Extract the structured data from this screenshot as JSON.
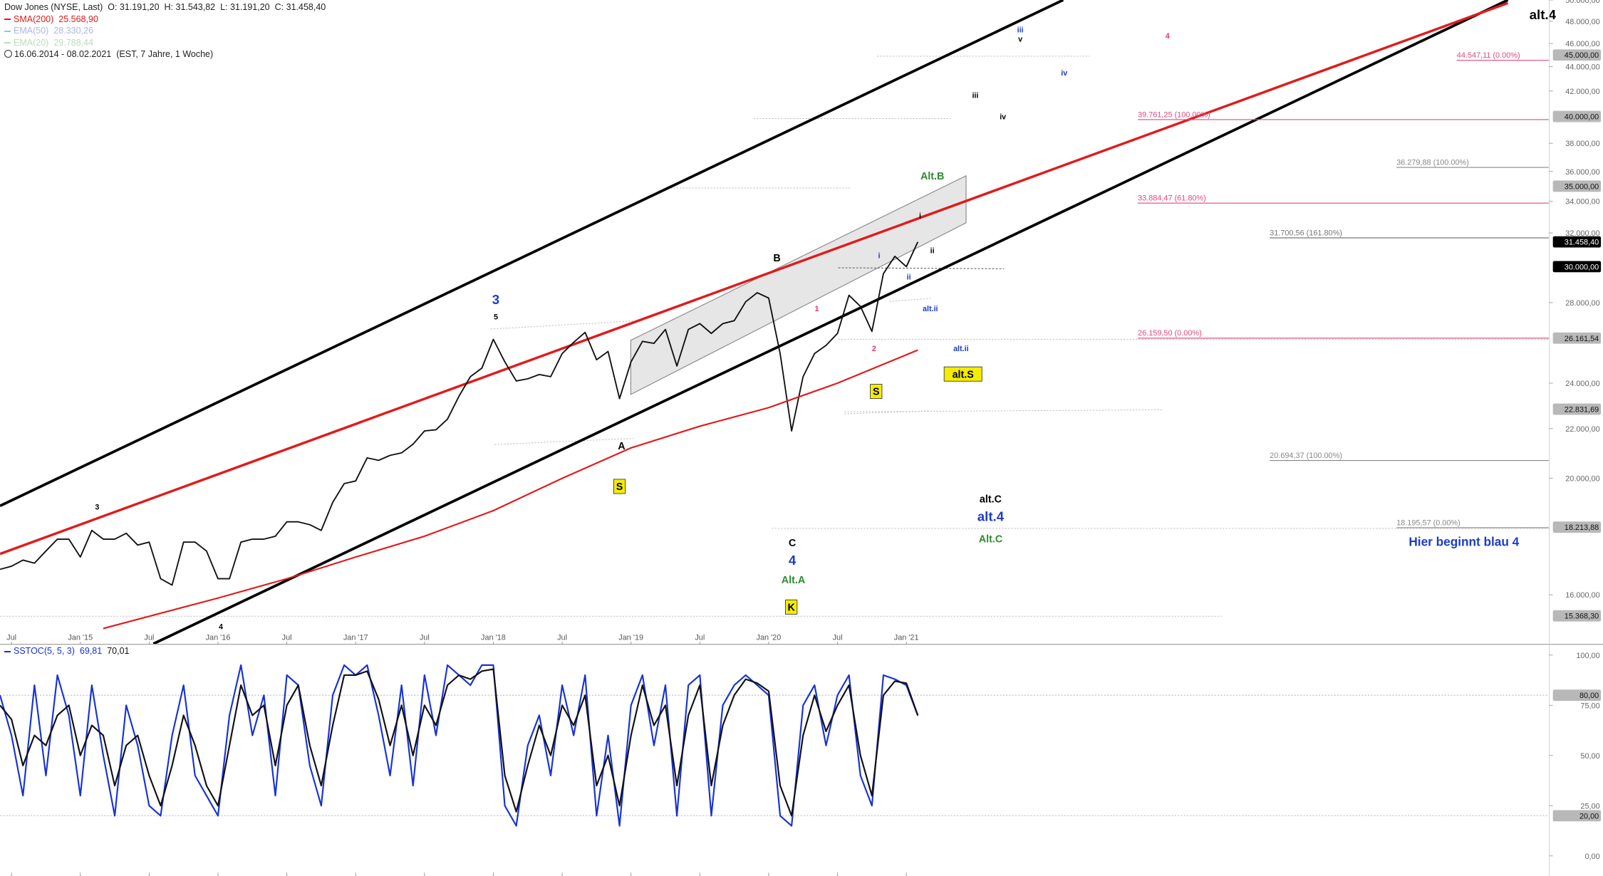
{
  "chart_data": [
    {
      "type": "line",
      "title": "Dow Jones (NYSE, Last)",
      "quote": [
        "O: 31.191,20",
        "H: 31.543,82",
        "L: 31.191,20",
        "C: 31.458,40"
      ],
      "period": "16.06.2014 - 08.02.2021",
      "period_note": "(EST, 7 Jahre, 1 Woche)",
      "log": true,
      "xlim": [
        "2014-06",
        "2025-09"
      ],
      "ylim": [
        14566,
        50000
      ],
      "xticks": [
        {
          "value": "2014-07",
          "label": "Jul"
        },
        {
          "value": "2015-01",
          "label": "Jan '15"
        },
        {
          "value": "2015-07",
          "label": "Jul"
        },
        {
          "value": "2016-01",
          "label": "Jan '16"
        },
        {
          "value": "2016-07",
          "label": "Jul"
        },
        {
          "value": "2017-01",
          "label": "Jan '17"
        },
        {
          "value": "2017-07",
          "label": "Jul"
        },
        {
          "value": "2018-01",
          "label": "Jan '18"
        },
        {
          "value": "2018-07",
          "label": "Jul"
        },
        {
          "value": "2019-01",
          "label": "Jan '19"
        },
        {
          "value": "2019-07",
          "label": "Jul"
        },
        {
          "value": "2020-01",
          "label": "Jan '20"
        },
        {
          "value": "2020-07",
          "label": "Jul"
        },
        {
          "value": "2021-01",
          "label": "Jan '21"
        }
      ],
      "yticks": [
        {
          "value": 16000,
          "label": "16.000,00"
        },
        {
          "value": 20000,
          "label": "20.000,00"
        },
        {
          "value": 22000,
          "label": "22.000,00"
        },
        {
          "value": 24000,
          "label": "24.000,00"
        },
        {
          "value": 28000,
          "label": "28.000,00"
        },
        {
          "value": 32000,
          "label": "32.000,00"
        },
        {
          "value": 34000,
          "label": "34.000,00"
        },
        {
          "value": 36000,
          "label": "36.000,00"
        },
        {
          "value": 38000,
          "label": "38.000,00"
        },
        {
          "value": 42000,
          "label": "42.000,00"
        },
        {
          "value": 44000,
          "label": "44.000,00"
        },
        {
          "value": 46000,
          "label": "46.000,00"
        },
        {
          "value": 48000,
          "label": "48.000,00"
        },
        {
          "value": 50000,
          "label": "50.000,00"
        }
      ],
      "x": [
        "2014-06",
        "2014-07",
        "2014-08",
        "2014-09",
        "2014-10",
        "2014-11",
        "2014-12",
        "2015-01",
        "2015-02",
        "2015-03",
        "2015-04",
        "2015-05",
        "2015-06",
        "2015-07",
        "2015-08",
        "2015-09",
        "2015-10",
        "2015-11",
        "2015-12",
        "2016-01",
        "2016-02",
        "2016-03",
        "2016-04",
        "2016-05",
        "2016-06",
        "2016-07",
        "2016-08",
        "2016-09",
        "2016-10",
        "2016-11",
        "2016-12",
        "2017-01",
        "2017-02",
        "2017-03",
        "2017-04",
        "2017-05",
        "2017-06",
        "2017-07",
        "2017-08",
        "2017-09",
        "2017-10",
        "2017-11",
        "2017-12",
        "2018-01",
        "2018-02",
        "2018-03",
        "2018-04",
        "2018-05",
        "2018-06",
        "2018-07",
        "2018-08",
        "2018-09",
        "2018-10",
        "2018-11",
        "2018-12",
        "2019-01",
        "2019-02",
        "2019-03",
        "2019-04",
        "2019-05",
        "2019-06",
        "2019-07",
        "2019-08",
        "2019-09",
        "2019-10",
        "2019-11",
        "2019-12",
        "2020-01",
        "2020-02",
        "2020-03",
        "2020-04",
        "2020-05",
        "2020-06",
        "2020-07",
        "2020-08",
        "2020-09",
        "2020-10",
        "2020-11",
        "2020-12",
        "2021-01",
        "2021-02"
      ],
      "series": [
        {
          "color": "#111111",
          "values": [
            16800,
            16900,
            17100,
            17000,
            17400,
            17800,
            17800,
            17200,
            18100,
            17800,
            17800,
            18000,
            17600,
            17700,
            16500,
            16300,
            17700,
            17700,
            17400,
            16500,
            16500,
            17700,
            17800,
            17800,
            17900,
            18400,
            18400,
            18300,
            18100,
            19100,
            19800,
            19900,
            20800,
            20700,
            20900,
            21000,
            21350,
            21900,
            21950,
            22400,
            23400,
            24300,
            24700,
            26100,
            25000,
            24100,
            24200,
            24400,
            24300,
            25400,
            25950,
            26450,
            25100,
            25500,
            23300,
            25000,
            26000,
            25900,
            26600,
            24800,
            26600,
            26900,
            26400,
            26900,
            27050,
            28050,
            28540,
            28250,
            25400,
            21900,
            24300,
            25400,
            25800,
            26400,
            28400,
            27800,
            26500,
            29600,
            30600,
            30000,
            31458.4
          ]
        },
        {
          "name": "SMA(200)",
          "last_label": "25.568,90",
          "color": "#e01b1b",
          "x": [
            "2015-03",
            "2016-01",
            "2016-07",
            "2017-01",
            "2017-07",
            "2018-01",
            "2018-07",
            "2019-01",
            "2019-07",
            "2020-01",
            "2020-07",
            "2021-02"
          ],
          "values": [
            15000,
            15900,
            16500,
            17200,
            17900,
            18800,
            20000,
            21200,
            22100,
            22900,
            24000,
            25568.9
          ]
        }
      ],
      "indicators_off": [
        {
          "name": "EMA(50)",
          "last_label": "28.330,26",
          "color": "#a9b6e6"
        },
        {
          "name": "EMA(20)",
          "last_label": "29.788,44",
          "color": "#b9dcb9"
        }
      ],
      "levels": [
        {
          "value": 45000,
          "label": "45.000,00",
          "color": "#b8b8b8"
        },
        {
          "value": 40000,
          "label": "40.000,00",
          "color": "#b8b8b8"
        },
        {
          "value": 35000,
          "label": "35.000,00",
          "color": "#b8b8b8"
        },
        {
          "value": 31458.4,
          "label": "31.458,40",
          "color": "#000000"
        },
        {
          "value": 30000,
          "label": "30.000,00",
          "color": "#000000"
        },
        {
          "value": 26161.54,
          "label": "26.161,54",
          "color": "#b8b8b8"
        },
        {
          "value": 22831.69,
          "label": "22.831,69",
          "color": "#b8b8b8"
        },
        {
          "value": 18213.88,
          "label": "18.213,88",
          "color": "#b8b8b8"
        },
        {
          "value": 15368.3,
          "label": "15.368,30",
          "color": "#b8b8b8"
        }
      ],
      "fib_levels": [
        {
          "value": 44547.11,
          "label": "44.547,11 (0.00%)",
          "color": "#e0497e"
        },
        {
          "value": 39761.25,
          "label": "39.761,25 (100.00%)",
          "color": "#e0497e"
        },
        {
          "value": 36279.88,
          "label": "36.279,88 (100.00%)",
          "color": "#888888"
        },
        {
          "value": 33884.47,
          "label": "33.884,47 (61.80%)",
          "color": "#e0497e"
        },
        {
          "value": 31700.56,
          "label": "31.700,56 (161.80%)",
          "color": "#777777"
        },
        {
          "value": 26159.5,
          "label": "26.159,50 (0.00%)",
          "color": "#e0497e"
        },
        {
          "value": 20694.37,
          "label": "20.694,37 (100.00%)",
          "color": "#888888"
        },
        {
          "value": 18195.57,
          "label": "18.195,57 (0.00%)",
          "color": "#888888"
        }
      ],
      "annotations": [
        {
          "text": "3",
          "color": "#1a3cc8",
          "style": "big"
        },
        {
          "text": "5",
          "color": "#000000",
          "style": "small"
        },
        {
          "text": "3",
          "color": "#000000",
          "style": "small"
        },
        {
          "text": "4",
          "color": "#000000",
          "style": "small"
        },
        {
          "text": "A",
          "color": "#000000",
          "style": "bold"
        },
        {
          "text": "S",
          "color": "#000000",
          "style": "box"
        },
        {
          "text": "B",
          "color": "#000000",
          "style": "bold"
        },
        {
          "text": "C",
          "color": "#000000",
          "style": "bold"
        },
        {
          "text": "4",
          "color": "#1a3cc8",
          "style": "big"
        },
        {
          "text": "Alt.A",
          "color": "#2e8b2e",
          "style": "bold"
        },
        {
          "text": "K",
          "color": "#000000",
          "style": "box"
        },
        {
          "text": "Alt.B",
          "color": "#2e8b2e",
          "style": "bold"
        },
        {
          "text": "alt.C",
          "color": "#000000",
          "style": "bold"
        },
        {
          "text": "alt.4",
          "color": "#1a3cc8",
          "style": "big"
        },
        {
          "text": "Alt.C",
          "color": "#2e8b2e",
          "style": "bold"
        },
        {
          "text": "alt.S",
          "color": "#000000",
          "style": "box"
        },
        {
          "text": "S",
          "color": "#000000",
          "style": "box"
        },
        {
          "text": "1",
          "color": "#e0356e",
          "style": "small"
        },
        {
          "text": "2",
          "color": "#e0356e",
          "style": "small"
        },
        {
          "text": "i",
          "color": "#1a3cc8",
          "style": "small"
        },
        {
          "text": "ii",
          "color": "#1a3cc8",
          "style": "small"
        },
        {
          "text": "i",
          "color": "#000000",
          "style": "small"
        },
        {
          "text": "ii",
          "color": "#000000",
          "style": "small"
        },
        {
          "text": "alt.ii",
          "color": "#1a3cc8",
          "style": "small"
        },
        {
          "text": "alt.ii",
          "color": "#1a3cc8",
          "style": "small"
        },
        {
          "text": "iii",
          "color": "#000000",
          "style": "small"
        },
        {
          "text": "iv",
          "color": "#000000",
          "style": "small"
        },
        {
          "text": "iii",
          "color": "#1a3cc8",
          "style": "small"
        },
        {
          "text": "v",
          "color": "#000000",
          "style": "small"
        },
        {
          "text": "iv",
          "color": "#1a3cc8",
          "style": "small"
        },
        {
          "text": "4",
          "color": "#e0356e",
          "style": "small"
        },
        {
          "text": "alt.4",
          "color": "#000000",
          "style": "big"
        },
        {
          "text": "Hier beginnt blau 4",
          "color": "#1a3cc8",
          "style": "bold"
        }
      ]
    },
    {
      "type": "line",
      "title": "SSTOC(5, 5, 3)",
      "xlim": [
        "2014-06",
        "2025-09"
      ],
      "ylim": [
        -10,
        105.6
      ],
      "yticks": [
        {
          "value": 0,
          "label": "0,00"
        },
        {
          "value": 25,
          "label": "25,00"
        },
        {
          "value": 50,
          "label": "50,00"
        },
        {
          "value": 75,
          "label": "75,00"
        },
        {
          "value": 100,
          "label": "100,00"
        }
      ],
      "levels": [
        {
          "value": 80,
          "label": "80,00",
          "color": "#b8b8b8"
        },
        {
          "value": 20,
          "label": "20,00",
          "color": "#b8b8b8"
        }
      ],
      "series": [
        {
          "last_label": "69,81",
          "color": "#1632d6",
          "values": [
            80,
            60,
            30,
            85,
            40,
            90,
            70,
            30,
            85,
            50,
            20,
            75,
            55,
            25,
            20,
            60,
            85,
            40,
            30,
            20,
            70,
            95,
            60,
            80,
            30,
            90,
            85,
            45,
            25,
            80,
            95,
            90,
            95,
            70,
            40,
            85,
            35,
            90,
            60,
            95,
            90,
            85,
            95,
            95,
            25,
            15,
            55,
            70,
            40,
            85,
            60,
            90,
            20,
            60,
            15,
            75,
            90,
            55,
            85,
            20,
            85,
            90,
            20,
            75,
            85,
            90,
            85,
            80,
            20,
            15,
            75,
            85,
            55,
            80,
            90,
            40,
            25,
            90,
            88,
            85,
            69.81
          ]
        },
        {
          "last_label": "70,01",
          "color": "#111111",
          "values": [
            75,
            68,
            45,
            60,
            55,
            70,
            75,
            50,
            65,
            60,
            35,
            55,
            60,
            40,
            25,
            45,
            70,
            55,
            35,
            25,
            55,
            85,
            70,
            75,
            45,
            75,
            85,
            55,
            35,
            65,
            90,
            90,
            92,
            78,
            55,
            75,
            50,
            75,
            65,
            85,
            90,
            88,
            92,
            93,
            40,
            22,
            45,
            65,
            50,
            75,
            65,
            80,
            35,
            50,
            25,
            60,
            85,
            65,
            75,
            35,
            70,
            85,
            35,
            65,
            80,
            88,
            86,
            82,
            35,
            20,
            60,
            80,
            62,
            75,
            85,
            50,
            30,
            80,
            87,
            86,
            70.01
          ]
        }
      ]
    }
  ]
}
